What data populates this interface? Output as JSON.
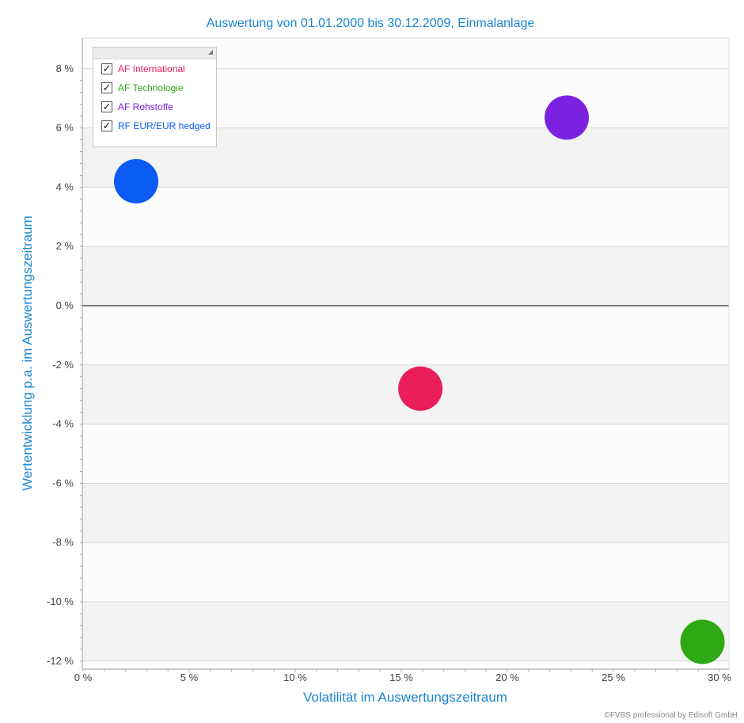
{
  "chart_data": {
    "type": "scatter",
    "title": "Auswertung von 01.01.2000 bis 30.12.2009, Einmalanlage",
    "xlabel": "Volatilität im Auswertungszeitraum",
    "ylabel": "Wertentwicklung p.a. im Auswertungszeitraum",
    "xlim": [
      0,
      30.5
    ],
    "ylim": [
      -12.2,
      8.9
    ],
    "x_ticks": [
      0,
      5,
      10,
      15,
      20,
      25,
      30
    ],
    "x_tick_labels": [
      "0 %",
      "5 %",
      "10 %",
      "15 %",
      "20 %",
      "25 %",
      "30 %"
    ],
    "y_ticks": [
      8,
      6,
      4,
      2,
      0,
      -2,
      -4,
      -6,
      -8,
      -10,
      -12
    ],
    "y_tick_labels": [
      "8 %",
      "6 %",
      "4 %",
      "2 %",
      "0 %",
      "-2 %",
      "-4 %",
      "-6 %",
      "-8 %",
      "-10 %",
      "-12 %"
    ],
    "grid": true,
    "legend_position": "top-left",
    "series": [
      {
        "name": "AF International",
        "color": "#e91e5a",
        "x": 15.9,
        "y": -2.8
      },
      {
        "name": "AF Technologie",
        "color": "#2ea813",
        "x": 29.2,
        "y": -11.35
      },
      {
        "name": "AF Rohstoffe",
        "color": "#7b22e0",
        "x": 22.8,
        "y": 6.35
      },
      {
        "name": "RF EUR/EUR hedged",
        "color": "#0a5cf5",
        "x": 2.5,
        "y": 4.2
      }
    ]
  },
  "legend": {
    "check_glyph": "✓"
  },
  "copyright": "©FVBS professional by Edisoft GmbH"
}
